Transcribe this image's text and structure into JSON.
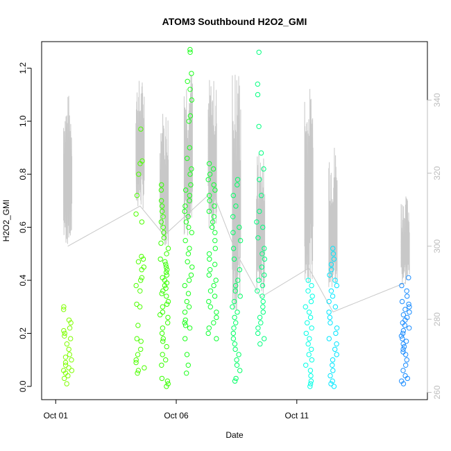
{
  "chart_data": {
    "type": "scatter",
    "title": "ATOM3 Southbound H2O2_GMI",
    "xlabel": "Date",
    "ylabel": "H2O2_GMI",
    "xlim": [
      "2017-09-30T10:00",
      "2017-10-16T10:00"
    ],
    "ylim": [
      -0.05,
      1.3
    ],
    "yticks": [
      0.0,
      0.2,
      0.4,
      0.6,
      0.8,
      1.0,
      1.2
    ],
    "xticks": [
      {
        "date": "2017-10-01",
        "label": "Oct 01"
      },
      {
        "date": "2017-10-06",
        "label": "Oct 06"
      },
      {
        "date": "2017-10-11",
        "label": "Oct 11"
      }
    ],
    "y2lim": [
      258,
      356
    ],
    "y2ticks": [
      260,
      280,
      300,
      320,
      340
    ],
    "grid": false,
    "legend": "none",
    "colors": {
      "overlay_line": "#c8c8c8",
      "right_axis": "#bdbdbd",
      "frame": "#000000"
    },
    "flights": [
      {
        "date": "2017-10-01",
        "color": "#7fff00",
        "values": [
          0.01,
          0.03,
          0.04,
          0.05,
          0.06,
          0.06,
          0.07,
          0.08,
          0.09,
          0.1,
          0.11,
          0.12,
          0.14,
          0.16,
          0.18,
          0.19,
          0.2,
          0.21,
          0.22,
          0.24,
          0.25,
          0.29,
          0.3
        ]
      },
      {
        "date": "2017-10-04",
        "color": "#4cff00",
        "values": [
          0.05,
          0.06,
          0.07,
          0.09,
          0.1,
          0.12,
          0.14,
          0.17,
          0.18,
          0.23,
          0.3,
          0.31,
          0.36,
          0.38,
          0.4,
          0.41,
          0.44,
          0.45,
          0.47,
          0.48,
          0.49,
          0.62,
          0.65,
          0.72,
          0.8,
          0.84,
          0.85,
          0.97
        ]
      },
      {
        "date": "2017-10-05",
        "color": "#36ff00",
        "values": [
          0.0,
          0.01,
          0.02,
          0.03,
          0.08,
          0.1,
          0.12,
          0.15,
          0.17,
          0.18,
          0.2,
          0.22,
          0.24,
          0.26,
          0.27,
          0.28,
          0.3,
          0.31,
          0.32,
          0.34,
          0.35,
          0.36,
          0.37,
          0.38,
          0.39,
          0.4,
          0.41,
          0.42,
          0.43,
          0.44,
          0.45,
          0.46,
          0.47,
          0.48,
          0.5,
          0.52,
          0.54,
          0.56,
          0.58,
          0.6,
          0.62,
          0.64,
          0.66,
          0.68,
          0.7,
          0.74,
          0.76
        ]
      },
      {
        "date": "2017-10-06",
        "color": "#1aff1a",
        "values": [
          0.05,
          0.08,
          0.12,
          0.18,
          0.22,
          0.23,
          0.24,
          0.25,
          0.28,
          0.3,
          0.32,
          0.35,
          0.38,
          0.4,
          0.42,
          0.45,
          0.47,
          0.5,
          0.52,
          0.55,
          0.58,
          0.6,
          0.62,
          0.64,
          0.66,
          0.68,
          0.7,
          0.72,
          0.74,
          0.76,
          0.8,
          0.82,
          0.86,
          0.9,
          1.0,
          1.02,
          1.08,
          1.12,
          1.15,
          1.18,
          1.26,
          1.27
        ]
      },
      {
        "date": "2017-10-07",
        "color": "#0dff33",
        "values": [
          0.18,
          0.2,
          0.22,
          0.24,
          0.26,
          0.28,
          0.3,
          0.32,
          0.34,
          0.36,
          0.38,
          0.4,
          0.42,
          0.44,
          0.46,
          0.48,
          0.5,
          0.52,
          0.55,
          0.58,
          0.6,
          0.62,
          0.64,
          0.66,
          0.68,
          0.7,
          0.72,
          0.74,
          0.76,
          0.78,
          0.8,
          0.82,
          0.84
        ]
      },
      {
        "date": "2017-10-08",
        "color": "#00ff66",
        "values": [
          0.02,
          0.03,
          0.06,
          0.08,
          0.1,
          0.12,
          0.14,
          0.16,
          0.18,
          0.2,
          0.22,
          0.24,
          0.26,
          0.28,
          0.3,
          0.32,
          0.34,
          0.36,
          0.38,
          0.4,
          0.44,
          0.48,
          0.52,
          0.55,
          0.58,
          0.6,
          0.64,
          0.68,
          0.72,
          0.76,
          0.78
        ]
      },
      {
        "date": "2017-10-09",
        "color": "#00ff7f",
        "values": [
          0.16,
          0.18,
          0.2,
          0.22,
          0.24,
          0.26,
          0.28,
          0.3,
          0.32,
          0.34,
          0.36,
          0.38,
          0.4,
          0.42,
          0.45,
          0.48,
          0.5,
          0.52,
          0.56,
          0.6,
          0.62,
          0.66,
          0.72,
          0.78,
          0.82,
          0.88,
          0.98,
          1.1,
          1.14,
          1.26
        ]
      },
      {
        "date": "2017-10-11",
        "color": "#00ffe6",
        "values": [
          0.0,
          0.01,
          0.02,
          0.04,
          0.06,
          0.08,
          0.1,
          0.12,
          0.14,
          0.16,
          0.18,
          0.2,
          0.22,
          0.24,
          0.26,
          0.28,
          0.3,
          0.32,
          0.34,
          0.36,
          0.38,
          0.4
        ]
      },
      {
        "date": "2017-10-12",
        "color": "#00e6ff",
        "values": [
          0.0,
          0.01,
          0.02,
          0.04,
          0.06,
          0.08,
          0.1,
          0.12,
          0.14,
          0.16,
          0.18,
          0.2,
          0.22,
          0.24,
          0.26,
          0.28,
          0.3,
          0.32,
          0.34,
          0.36,
          0.38,
          0.4,
          0.42,
          0.44,
          0.46,
          0.48,
          0.5,
          0.52
        ]
      },
      {
        "date": "2017-10-15",
        "color": "#1a8cff",
        "values": [
          0.01,
          0.02,
          0.03,
          0.04,
          0.06,
          0.08,
          0.1,
          0.12,
          0.13,
          0.14,
          0.15,
          0.16,
          0.17,
          0.18,
          0.19,
          0.2,
          0.21,
          0.22,
          0.23,
          0.24,
          0.25,
          0.26,
          0.27,
          0.28,
          0.29,
          0.3,
          0.31,
          0.32,
          0.34,
          0.36,
          0.38,
          0.41
        ]
      }
    ],
    "y2_overlay": [
      {
        "date": "2017-10-01",
        "min": 300,
        "max": 342
      },
      {
        "date": "2017-10-04",
        "min": 310,
        "max": 346
      },
      {
        "date": "2017-10-05",
        "min": 300,
        "max": 338
      },
      {
        "date": "2017-10-06",
        "min": 302,
        "max": 349
      },
      {
        "date": "2017-10-07",
        "min": 304,
        "max": 346
      },
      {
        "date": "2017-10-08",
        "min": 282,
        "max": 350
      },
      {
        "date": "2017-10-09",
        "min": 286,
        "max": 326
      },
      {
        "date": "2017-10-11",
        "min": 290,
        "max": 344
      },
      {
        "date": "2017-10-12",
        "min": 287,
        "max": 329
      },
      {
        "date": "2017-10-15",
        "min": 289,
        "max": 314
      }
    ],
    "y2_connector": [
      [
        "2017-10-01",
        300
      ],
      [
        "2017-10-04",
        311
      ],
      [
        "2017-10-05",
        303
      ],
      [
        "2017-10-06",
        309
      ],
      [
        "2017-10-07",
        315
      ],
      [
        "2017-10-08",
        298
      ],
      [
        "2017-10-09",
        286
      ],
      [
        "2017-10-11",
        294
      ],
      [
        "2017-10-12",
        282
      ],
      [
        "2017-10-15",
        290
      ]
    ]
  }
}
